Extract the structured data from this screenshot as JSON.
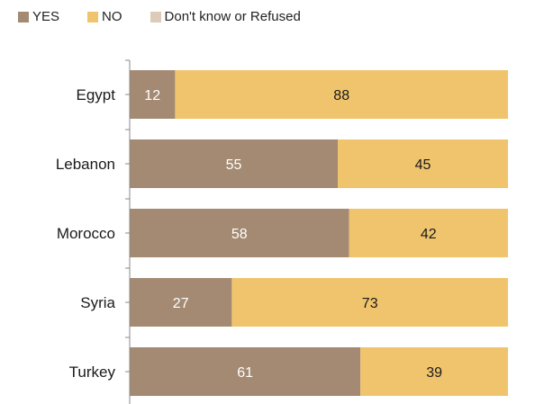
{
  "chart_data": {
    "type": "bar",
    "orientation": "horizontal",
    "stacked": true,
    "categories": [
      "Egypt",
      "Lebanon",
      "Morocco",
      "Syria",
      "Turkey"
    ],
    "series": [
      {
        "name": "YES",
        "color": "#a48a72",
        "label_color": "#ffffff",
        "values": [
          12,
          55,
          58,
          27,
          61
        ]
      },
      {
        "name": "NO",
        "color": "#f0c46c",
        "label_color": "#1a1a1a",
        "values": [
          88,
          45,
          42,
          73,
          39
        ]
      },
      {
        "name": "Don't know or Refused",
        "color": "#dccbb8",
        "label_color": "#1a1a1a",
        "values": [
          0,
          0,
          0,
          0,
          0
        ]
      }
    ],
    "xlim": [
      0,
      100
    ],
    "grid": false,
    "legend_position": "top-left"
  }
}
